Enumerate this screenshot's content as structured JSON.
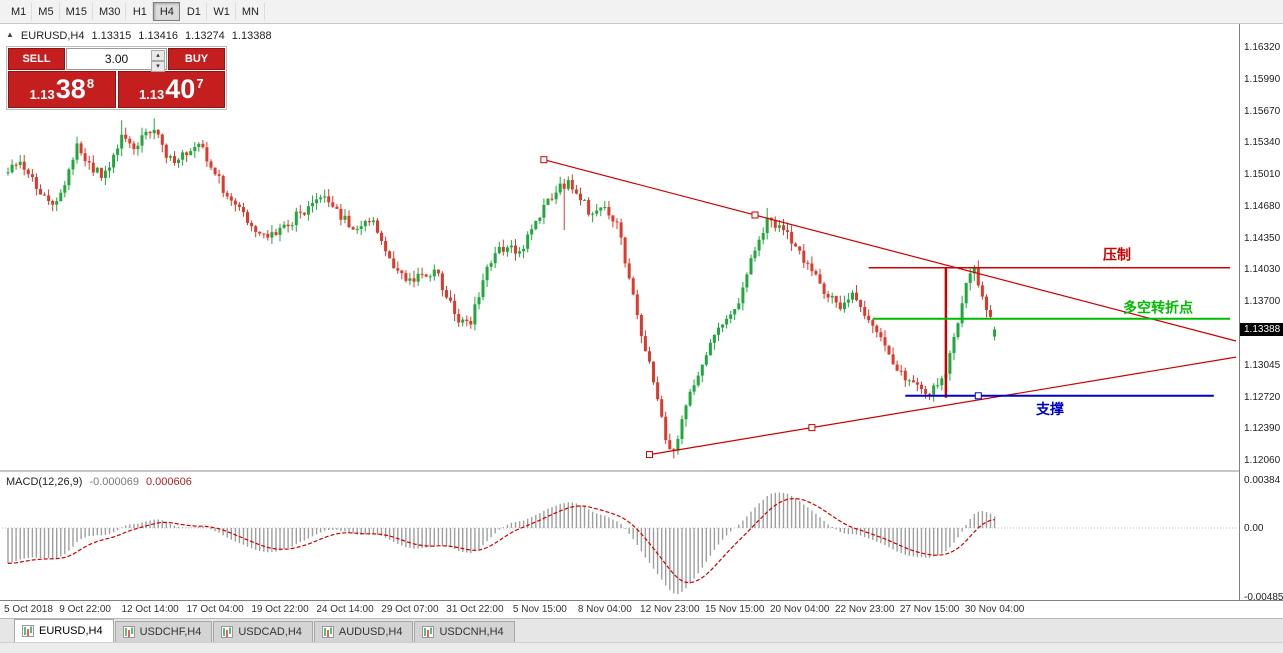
{
  "toolbar": {
    "timeframes": [
      {
        "label": "M1",
        "active": false
      },
      {
        "label": "M5",
        "active": false
      },
      {
        "label": "M15",
        "active": false
      },
      {
        "label": "M30",
        "active": false
      },
      {
        "label": "H1",
        "active": false
      },
      {
        "label": "H4",
        "active": true
      },
      {
        "label": "D1",
        "active": false
      },
      {
        "label": "W1",
        "active": false
      },
      {
        "label": "MN",
        "active": false
      }
    ]
  },
  "chart": {
    "header": {
      "collapse_icon": "▲",
      "title": "EURUSD,H4",
      "open": "1.13315",
      "high": "1.13416",
      "low": "1.13274",
      "close": "1.13388"
    },
    "trade_panel": {
      "sell_label": "SELL",
      "buy_label": "BUY",
      "volume": "3.00",
      "sell_quote": {
        "big": "1.13",
        "pips": "38",
        "pipette": "8"
      },
      "buy_quote": {
        "big": "1.13",
        "pips": "40",
        "pipette": "7"
      }
    },
    "price_axis": {
      "labels": [
        "1.16320",
        "1.15990",
        "1.15670",
        "1.15340",
        "1.15010",
        "1.14680",
        "1.14350",
        "1.14030",
        "1.13700",
        "1.13370",
        "1.13045",
        "1.12720",
        "1.12390",
        "1.12060"
      ],
      "current_price": 1.13388,
      "current_price_label": "1.13388"
    },
    "time_axis": {
      "labels": [
        "5 Oct 2018",
        "9 Oct 22:00",
        "12 Oct 14:00",
        "17 Oct 04:00",
        "19 Oct 22:00",
        "24 Oct 14:00",
        "29 Oct 07:00",
        "31 Oct 22:00",
        "5 Nov 15:00",
        "8 Nov 04:00",
        "12 Nov 23:00",
        "15 Nov 15:00",
        "20 Nov 04:00",
        "22 Nov 23:00",
        "27 Nov 15:00",
        "30 Nov 04:00"
      ]
    },
    "annotations": {
      "hlines": [
        {
          "role": "resistance",
          "label": "压制",
          "price": 1.1403,
          "color": "#cc0000",
          "from_bar": 212,
          "to_bar": 301
        },
        {
          "role": "pivot",
          "label": "多空转折点",
          "price": 1.135,
          "color": "#00bb00",
          "from_bar": 213,
          "to_bar": 301
        },
        {
          "role": "support",
          "label": "支撑",
          "price": 1.127,
          "color": "#0000cc",
          "from_bar": 221,
          "to_bar": 297,
          "handle_bar": 239
        }
      ],
      "vline": {
        "bar": 231,
        "from_price": 1.1403,
        "to_price": 1.1268,
        "color": "#cc0000"
      },
      "trendlines": [
        {
          "name": "descending-resistance",
          "from": {
            "bar": 132,
            "price": 1.1515
          },
          "to": {
            "bar": 184,
            "price": 1.14577
          },
          "color": "#cc0000"
        },
        {
          "name": "ascending-support",
          "from": {
            "bar": 158,
            "price": 1.1209
          },
          "to": {
            "bar": 198,
            "price": 1.1237
          },
          "color": "#cc0000"
        }
      ]
    }
  },
  "macd": {
    "label": "MACD(12,26,9)",
    "value": "-0.000069",
    "signal_value": "0.000606",
    "axis_labels": [
      "0.00384",
      "0.00",
      "-0.00485"
    ]
  },
  "tabs": [
    {
      "label": "EURUSD,H4",
      "active": true
    },
    {
      "label": "USDCHF,H4",
      "active": false
    },
    {
      "label": "USDCAD,H4",
      "active": false
    },
    {
      "label": "AUDUSD,H4",
      "active": false
    },
    {
      "label": "USDCNH,H4",
      "active": false
    }
  ],
  "chart_data": {
    "type": "candlestick",
    "symbol": "EURUSD",
    "timeframe": "H4",
    "bars": 244,
    "ylim": [
      1.1198,
      1.1652
    ],
    "levels": {
      "resistance": 1.1403,
      "bull_bear_pivot": 1.135,
      "support": 1.127
    },
    "last_ohlc": {
      "open": 1.13315,
      "high": 1.13416,
      "low": 1.13274,
      "close": 1.13388
    },
    "colors": {
      "bull": "#1fa83c",
      "bear": "#e0392b",
      "macd_hist": "#9e9e9e",
      "macd_signal": "#cc0000"
    },
    "macd_seed": [
      0.003,
      0.0062
    ],
    "macd_params": {
      "fast": 12,
      "slow": 26,
      "signal": 9
    },
    "pins": [
      {
        "bar": 28,
        "high": 1.1556
      },
      {
        "bar": 36,
        "high": 1.1558
      },
      {
        "bar": 137,
        "low": 1.1442
      },
      {
        "bar": 164,
        "low": 1.1206
      },
      {
        "bar": 187,
        "high": 1.1465
      },
      {
        "bar": 226,
        "low": 1.1267
      },
      {
        "bar": 238,
        "high": 1.1406
      }
    ],
    "price_path": [
      [
        0,
        1.1502
      ],
      [
        3,
        1.1513
      ],
      [
        6,
        1.1497
      ],
      [
        9,
        1.1478
      ],
      [
        12,
        1.1472
      ],
      [
        15,
        1.1505
      ],
      [
        17,
        1.1532
      ],
      [
        20,
        1.1512
      ],
      [
        23,
        1.1496
      ],
      [
        26,
        1.152
      ],
      [
        28,
        1.1541
      ],
      [
        31,
        1.1526
      ],
      [
        34,
        1.1544
      ],
      [
        36,
        1.1546
      ],
      [
        39,
        1.1517
      ],
      [
        42,
        1.1515
      ],
      [
        45,
        1.1524
      ],
      [
        48,
        1.1528
      ],
      [
        51,
        1.15
      ],
      [
        54,
        1.1477
      ],
      [
        57,
        1.1466
      ],
      [
        60,
        1.1446
      ],
      [
        63,
        1.1438
      ],
      [
        66,
        1.1437
      ],
      [
        69,
        1.1446
      ],
      [
        72,
        1.146
      ],
      [
        75,
        1.147
      ],
      [
        78,
        1.1477
      ],
      [
        81,
        1.1464
      ],
      [
        84,
        1.1445
      ],
      [
        87,
        1.1446
      ],
      [
        90,
        1.1452
      ],
      [
        93,
        1.142
      ],
      [
        96,
        1.14
      ],
      [
        99,
        1.1392
      ],
      [
        102,
        1.1396
      ],
      [
        105,
        1.1401
      ],
      [
        108,
        1.1372
      ],
      [
        111,
        1.1346
      ],
      [
        114,
        1.1344
      ],
      [
        117,
        1.139
      ],
      [
        120,
        1.1418
      ],
      [
        123,
        1.1424
      ],
      [
        126,
        1.142
      ],
      [
        129,
        1.1443
      ],
      [
        132,
        1.1468
      ],
      [
        135,
        1.1481
      ],
      [
        138,
        1.1494
      ],
      [
        141,
        1.1473
      ],
      [
        144,
        1.1459
      ],
      [
        147,
        1.1466
      ],
      [
        150,
        1.145
      ],
      [
        153,
        1.1392
      ],
      [
        156,
        1.1332
      ],
      [
        159,
        1.1284
      ],
      [
        162,
        1.1224
      ],
      [
        164,
        1.1213
      ],
      [
        167,
        1.126
      ],
      [
        170,
        1.1291
      ],
      [
        173,
        1.1325
      ],
      [
        176,
        1.1344
      ],
      [
        179,
        1.136
      ],
      [
        182,
        1.1396
      ],
      [
        185,
        1.1432
      ],
      [
        187,
        1.1455
      ],
      [
        190,
        1.1447
      ],
      [
        193,
        1.1428
      ],
      [
        196,
        1.1408
      ],
      [
        199,
        1.1396
      ],
      [
        202,
        1.1372
      ],
      [
        205,
        1.136
      ],
      [
        208,
        1.1377
      ],
      [
        211,
        1.1353
      ],
      [
        214,
        1.1336
      ],
      [
        217,
        1.1313
      ],
      [
        220,
        1.1296
      ],
      [
        223,
        1.1284
      ],
      [
        226,
        1.1272
      ],
      [
        229,
        1.1281
      ],
      [
        231,
        1.1293
      ],
      [
        233,
        1.1331
      ],
      [
        235,
        1.1366
      ],
      [
        237,
        1.1397
      ],
      [
        238,
        1.1403
      ],
      [
        240,
        1.1373
      ],
      [
        242,
        1.1352
      ],
      [
        243,
        1.1339
      ]
    ]
  }
}
